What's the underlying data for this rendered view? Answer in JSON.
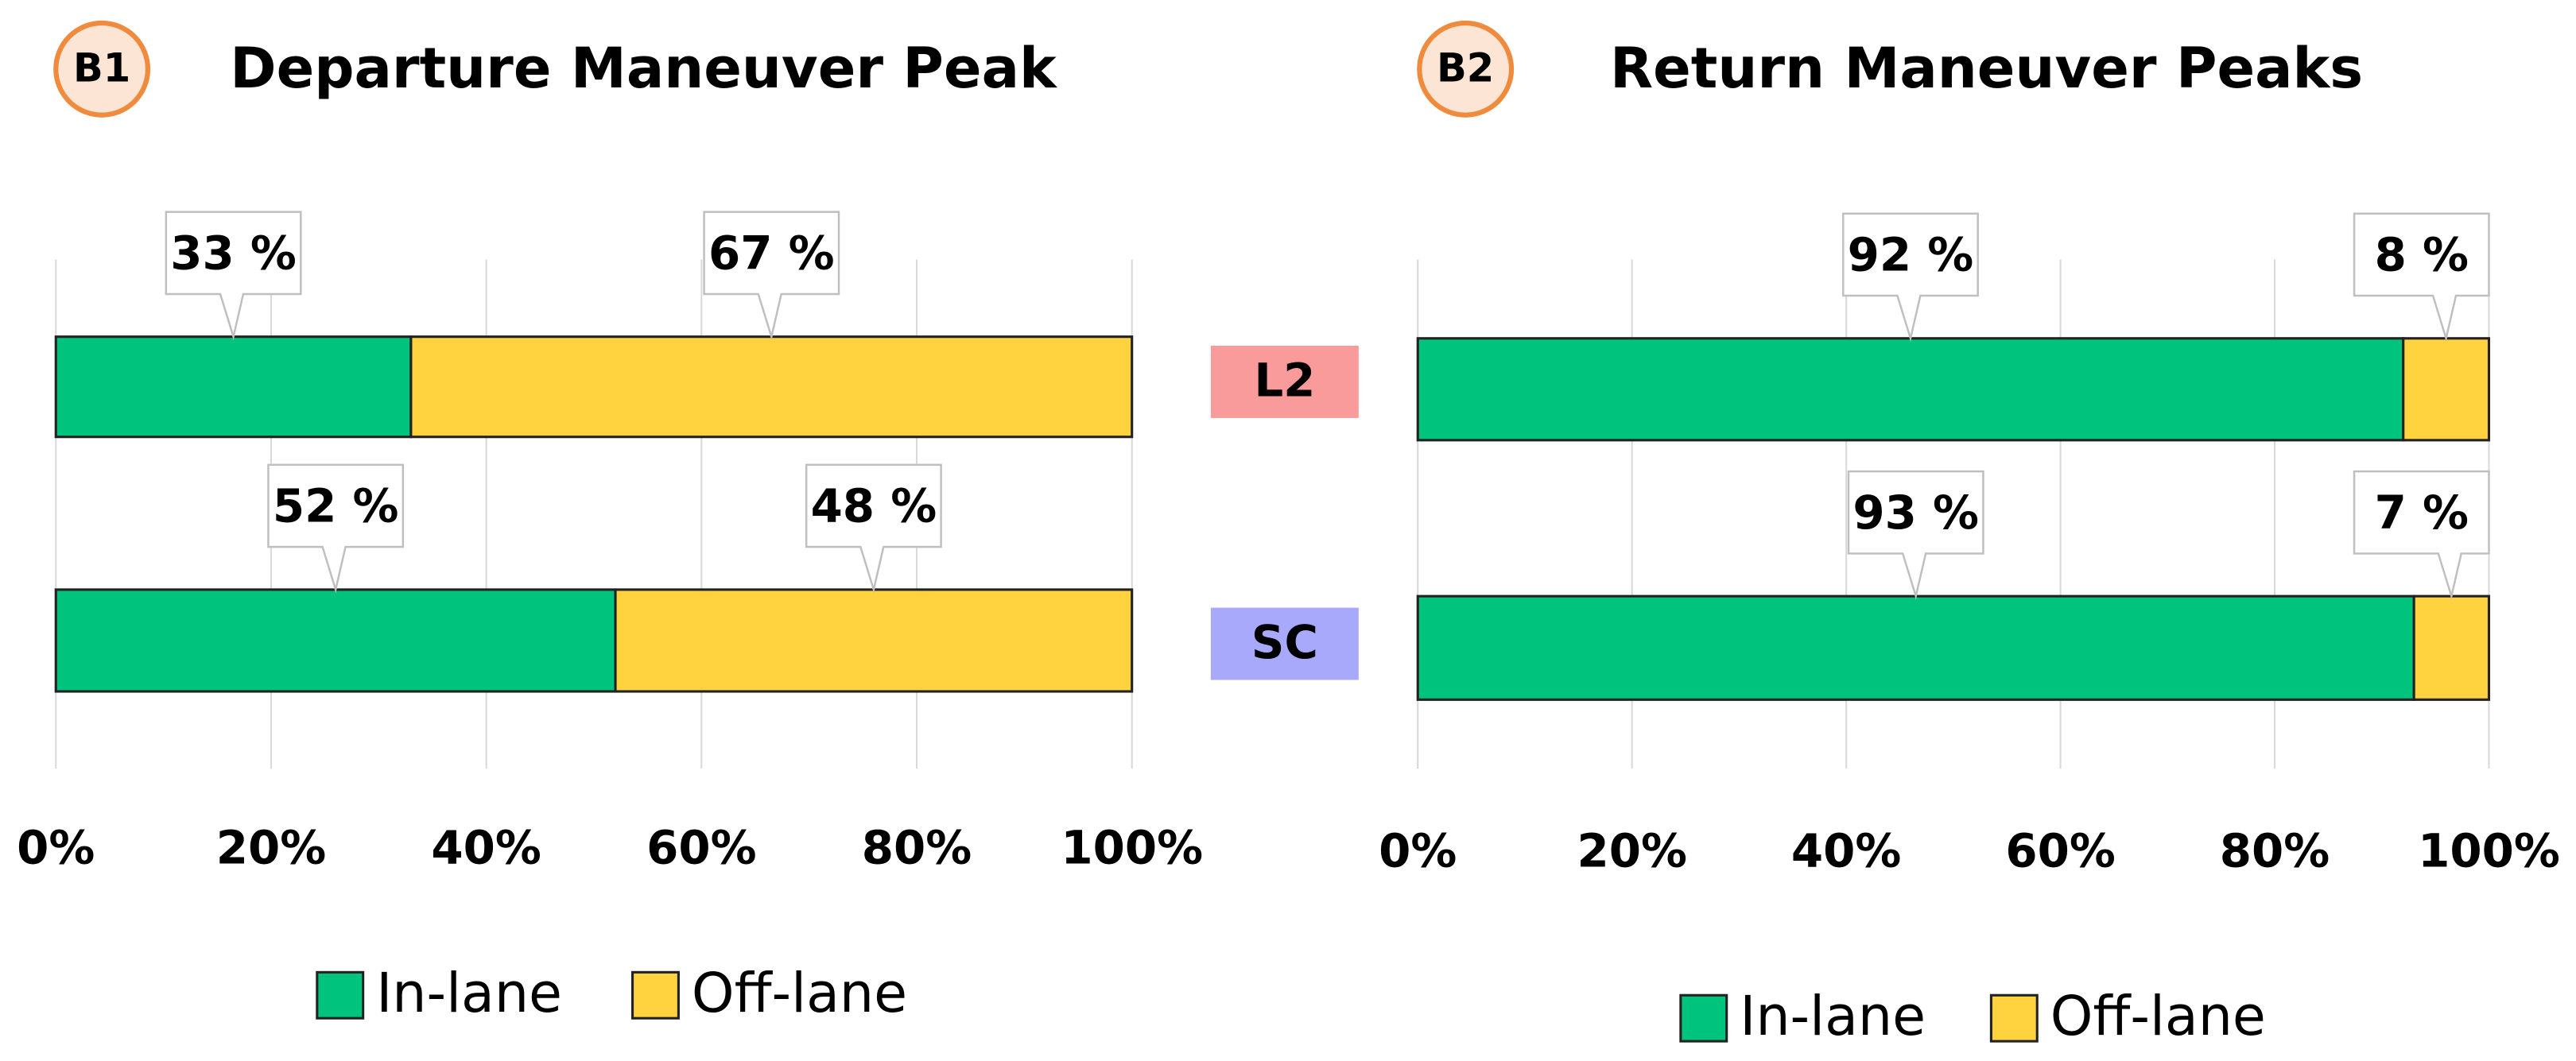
{
  "chart_data": [
    {
      "type": "stacked-bar-horizontal",
      "panel": "B1",
      "title": "Departure Maneuver Peak",
      "categories": [
        "L2",
        "SC"
      ],
      "series": [
        {
          "name": "In-lane",
          "color": "#00c47d",
          "values": [
            33,
            52
          ],
          "value_labels": [
            "33 %",
            "52 %"
          ]
        },
        {
          "name": "Off-lane",
          "color": "#ffd23f",
          "values": [
            67,
            48
          ],
          "value_labels": [
            "67 %",
            "48 %"
          ]
        }
      ],
      "xlim": [
        0,
        100
      ],
      "xticks": [
        {
          "value": 0,
          "label": "0%"
        },
        {
          "value": 20,
          "label": "20%"
        },
        {
          "value": 40,
          "label": "40%"
        },
        {
          "value": 60,
          "label": "60%"
        },
        {
          "value": 80,
          "label": "80%"
        },
        {
          "value": 100,
          "label": "100%"
        }
      ],
      "grid": true
    },
    {
      "type": "stacked-bar-horizontal",
      "panel": "B2",
      "title": "Return Maneuver Peaks",
      "series": [
        {
          "name": "In-lane",
          "color": "#00c47d",
          "values": [
            92,
            93
          ],
          "value_labels": [
            "92 %",
            "93 %"
          ]
        },
        {
          "name": "Off-lane",
          "color": "#ffd23f",
          "values": [
            8,
            7
          ],
          "value_labels": [
            "8 %",
            "7 %"
          ]
        }
      ],
      "xlim": [
        0,
        100
      ],
      "xticks": [
        {
          "value": 0,
          "label": "0%"
        },
        {
          "value": 20,
          "label": "20%"
        },
        {
          "value": 40,
          "label": "40%"
        },
        {
          "value": 60,
          "label": "60%"
        },
        {
          "value": 80,
          "label": "80%"
        },
        {
          "value": 100,
          "label": "100%"
        }
      ],
      "grid": true
    }
  ]
}
